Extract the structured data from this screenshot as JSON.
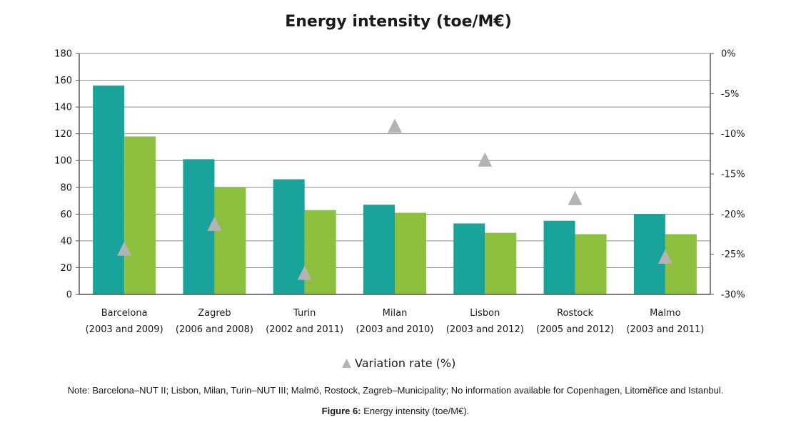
{
  "chart_data": {
    "type": "bar",
    "title": "Energy intensity (toe/M€)",
    "categories": [
      [
        "Barcelona",
        "(2003 and 2009)"
      ],
      [
        "Zagreb",
        "(2006 and 2008)"
      ],
      [
        "Turin",
        "(2002 and 2011)"
      ],
      [
        "Milan",
        "(2003 and 2010)"
      ],
      [
        "Lisbon",
        "(2003 and 2012)"
      ],
      [
        "Rostock",
        "(2005 and 2012)"
      ],
      [
        "Malmo",
        "(2003 and 2011)"
      ]
    ],
    "series": [
      {
        "values": [
          156,
          101,
          86,
          67,
          53,
          55,
          60
        ],
        "color": "#1aa39a"
      },
      {
        "values": [
          118,
          80,
          63,
          61,
          46,
          45,
          45
        ],
        "color": "#8dc03f"
      }
    ],
    "variation": {
      "name": "Variation rate (%)",
      "values": [
        -24.3,
        -21.2,
        -27.3,
        -9.0,
        -13.2,
        -18.0,
        -25.3
      ],
      "color": "#b3b3b3"
    },
    "ylim": [
      0,
      180
    ],
    "y_ticks": [
      0,
      20,
      40,
      60,
      80,
      100,
      120,
      140,
      160,
      180
    ],
    "y2lim": [
      -30,
      0
    ],
    "y2_ticks": [
      0,
      -5,
      -10,
      -15,
      -20,
      -25,
      -30
    ],
    "y2_tick_labels": [
      "0%",
      "-5%",
      "-10%",
      "-15%",
      "-20%",
      "-25%",
      "-30%"
    ],
    "grid": true,
    "legend_position": "bottom-center"
  },
  "note": "Note: Barcelona–NUT II; Lisbon, Milan, Turin–NUT III; Malmö, Rostock, Zagreb–Municipality; No information available for Copenhagen, Litoměřice and Istanbul.",
  "caption": {
    "label": "Figure 6:",
    "text": " Energy intensity (toe/M€)."
  }
}
